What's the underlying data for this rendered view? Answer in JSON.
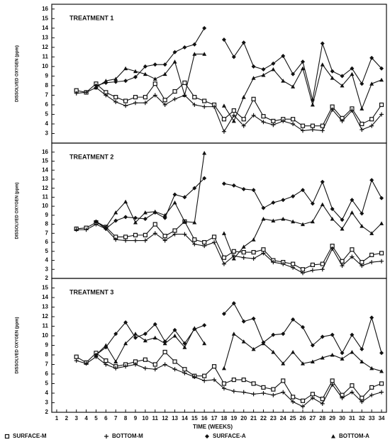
{
  "chart_data": [
    {
      "type": "line",
      "title": "TREATMENT 1",
      "y_label": "DISSOLVED OXYGEN (ppm)",
      "xlim": [
        0.5,
        34.5
      ],
      "ylim": [
        2,
        16.5
      ],
      "yticks": [
        3,
        4,
        5,
        6,
        7,
        8,
        9,
        10,
        11,
        12,
        13,
        14,
        15,
        16
      ],
      "x": [
        3,
        4,
        5,
        6,
        7,
        8,
        9,
        10,
        11,
        12,
        13,
        14,
        15,
        16,
        17,
        18,
        19,
        20,
        21,
        22,
        23,
        24,
        25,
        26,
        27,
        28,
        29,
        30,
        31,
        32,
        33,
        34
      ],
      "series": [
        {
          "marker": "square",
          "color": "#111",
          "values": [
            7.5,
            7.3,
            8.2,
            7.3,
            6.8,
            6.4,
            6.8,
            6.8,
            8.2,
            6.5,
            7.4,
            8.3,
            6.8,
            6.4,
            6.0,
            4.5,
            5.4,
            4.5,
            6.6,
            4.8,
            4.3,
            4.5,
            4.5,
            3.8,
            3.8,
            3.8,
            5.8,
            4.6,
            5.6,
            4.0,
            4.5,
            6.0
          ]
        },
        {
          "marker": "plus",
          "color": "#111",
          "values": [
            7.2,
            7.3,
            7.8,
            7.0,
            6.3,
            5.9,
            6.2,
            6.2,
            7.0,
            6.0,
            6.6,
            7.0,
            6.0,
            5.8,
            5.8,
            3.2,
            4.9,
            3.8,
            4.9,
            4.2,
            3.9,
            4.3,
            4.0,
            3.3,
            3.4,
            3.3,
            5.5,
            4.3,
            5.4,
            3.4,
            3.8,
            5.0
          ]
        },
        {
          "marker": "diamond",
          "color": "#111",
          "values": [
            null,
            null,
            8.0,
            8.3,
            8.4,
            8.5,
            8.9,
            10.0,
            10.2,
            10.2,
            11.5,
            12.0,
            12.3,
            14.0,
            null,
            12.8,
            11.0,
            12.5,
            10.0,
            9.7,
            10.3,
            11.1,
            9.2,
            10.5,
            6.5,
            12.4,
            9.5,
            9.0,
            9.8,
            8.2,
            10.9,
            9.8
          ]
        },
        {
          "marker": "triangle",
          "color": "#111",
          "values": [
            null,
            null,
            7.8,
            8.5,
            8.7,
            9.8,
            9.5,
            9.2,
            8.7,
            9.2,
            10.5,
            7.0,
            11.3,
            11.3,
            null,
            5.9,
            4.3,
            6.8,
            8.8,
            9.1,
            9.7,
            8.5,
            7.9,
            9.8,
            6.0,
            10.2,
            8.8,
            8.0,
            9.2,
            5.6,
            8.2,
            8.6
          ]
        }
      ]
    },
    {
      "type": "line",
      "title": "TREATMENT 2",
      "y_label": "DISSOLVED OXYGEN (ppm)",
      "xlim": [
        0.5,
        34.5
      ],
      "ylim": [
        2,
        17
      ],
      "yticks": [
        2,
        3,
        4,
        5,
        6,
        7,
        8,
        9,
        10,
        11,
        12,
        13,
        14,
        15,
        16
      ],
      "x": [
        3,
        4,
        5,
        6,
        7,
        8,
        9,
        10,
        11,
        12,
        13,
        14,
        15,
        16,
        17,
        18,
        19,
        20,
        21,
        22,
        23,
        24,
        25,
        26,
        27,
        28,
        29,
        30,
        31,
        32,
        33,
        34
      ],
      "series": [
        {
          "marker": "square",
          "color": "#111",
          "values": [
            7.5,
            7.6,
            8.2,
            7.7,
            6.6,
            6.6,
            6.8,
            6.8,
            8.0,
            6.7,
            7.3,
            8.3,
            6.3,
            6.0,
            6.6,
            4.3,
            5.0,
            4.9,
            4.9,
            5.2,
            4.0,
            3.8,
            3.6,
            3.0,
            3.5,
            3.6,
            5.6,
            3.9,
            5.2,
            3.8,
            4.6,
            4.8
          ]
        },
        {
          "marker": "plus",
          "color": "#111",
          "values": [
            7.4,
            7.4,
            8.0,
            7.5,
            6.3,
            6.2,
            6.2,
            6.2,
            7.0,
            6.2,
            6.9,
            6.9,
            5.8,
            5.6,
            6.0,
            3.6,
            4.5,
            4.3,
            4.2,
            4.8,
            3.8,
            3.6,
            3.2,
            2.6,
            2.9,
            3.0,
            5.3,
            3.4,
            4.4,
            3.4,
            3.8,
            3.9
          ]
        },
        {
          "marker": "diamond",
          "color": "#111",
          "values": [
            null,
            null,
            8.3,
            7.5,
            8.4,
            8.8,
            8.7,
            8.6,
            9.3,
            8.7,
            11.3,
            11.0,
            12.0,
            13.1,
            null,
            12.5,
            12.3,
            11.9,
            11.8,
            9.8,
            10.4,
            10.7,
            11.1,
            11.8,
            10.3,
            12.7,
            9.7,
            8.5,
            10.7,
            9.2,
            12.9,
            10.9
          ]
        },
        {
          "marker": "triangle",
          "color": "#111",
          "values": [
            null,
            null,
            8.3,
            7.7,
            9.3,
            10.5,
            8.2,
            9.3,
            9.4,
            9.0,
            10.4,
            8.3,
            8.2,
            15.9,
            null,
            7.0,
            4.2,
            5.5,
            6.3,
            8.6,
            8.4,
            8.6,
            8.3,
            8.0,
            8.3,
            10.2,
            8.6,
            7.5,
            9.3,
            7.8,
            7.0,
            8.1
          ]
        }
      ]
    },
    {
      "type": "line",
      "title": "TREATMENT 3",
      "y_label": "DISSOLVED OXYGEN (ppm)",
      "x_label": "TIME (WEEKS)",
      "xlim": [
        0.5,
        34.5
      ],
      "xticks": [
        1,
        2,
        3,
        4,
        5,
        6,
        7,
        8,
        9,
        10,
        11,
        12,
        13,
        14,
        15,
        16,
        17,
        18,
        19,
        20,
        21,
        22,
        23,
        24,
        25,
        26,
        27,
        28,
        29,
        30,
        31,
        32,
        33,
        34
      ],
      "ylim": [
        2,
        16
      ],
      "yticks": [
        2,
        3,
        4,
        5,
        6,
        7,
        8,
        9,
        10,
        11,
        12,
        13,
        14,
        15
      ],
      "x": [
        3,
        4,
        5,
        6,
        7,
        8,
        9,
        10,
        11,
        12,
        13,
        14,
        15,
        16,
        17,
        18,
        19,
        20,
        21,
        22,
        23,
        24,
        25,
        26,
        27,
        28,
        29,
        30,
        31,
        32,
        33,
        34
      ],
      "series": [
        {
          "name": "SURFACE-M",
          "marker": "square",
          "color": "#111",
          "values": [
            7.8,
            7.2,
            8.2,
            7.4,
            6.8,
            7.0,
            7.3,
            7.5,
            7.0,
            8.3,
            7.3,
            6.5,
            5.8,
            5.8,
            6.8,
            5.0,
            5.4,
            5.4,
            5.0,
            4.6,
            4.4,
            5.3,
            3.6,
            3.2,
            3.9,
            3.4,
            5.3,
            3.8,
            4.8,
            3.5,
            4.6,
            5.0
          ]
        },
        {
          "name": "BOTTOM-M",
          "marker": "plus",
          "color": "#111",
          "values": [
            7.4,
            7.1,
            7.8,
            7.0,
            6.6,
            6.8,
            7.0,
            6.6,
            6.5,
            7.0,
            6.5,
            6.1,
            5.7,
            5.3,
            5.4,
            4.5,
            4.2,
            4.1,
            3.9,
            4.0,
            3.8,
            4.1,
            3.1,
            2.6,
            3.5,
            2.9,
            4.9,
            3.5,
            4.1,
            3.1,
            3.8,
            4.1
          ]
        },
        {
          "name": "SURFACE-A",
          "marker": "diamond",
          "color": "#111",
          "values": [
            null,
            null,
            8.0,
            8.8,
            10.2,
            11.4,
            9.8,
            10.2,
            11.2,
            9.4,
            10.6,
            9.2,
            10.7,
            11.1,
            null,
            12.3,
            13.4,
            11.5,
            11.8,
            9.3,
            10.1,
            10.2,
            11.7,
            10.9,
            9.0,
            9.9,
            10.1,
            8.2,
            10.1,
            8.6,
            11.9,
            8.2
          ]
        },
        {
          "name": "BOTTOM-A",
          "marker": "triangle",
          "color": "#111",
          "values": [
            null,
            null,
            8.0,
            9.0,
            7.3,
            9.2,
            10.2,
            9.5,
            9.8,
            9.2,
            10.0,
            8.8,
            10.8,
            9.2,
            null,
            6.6,
            10.2,
            9.4,
            8.6,
            9.2,
            8.3,
            7.1,
            8.3,
            7.1,
            7.3,
            7.7,
            8.0,
            7.6,
            8.3,
            7.3,
            6.6,
            6.3
          ]
        }
      ]
    }
  ]
}
